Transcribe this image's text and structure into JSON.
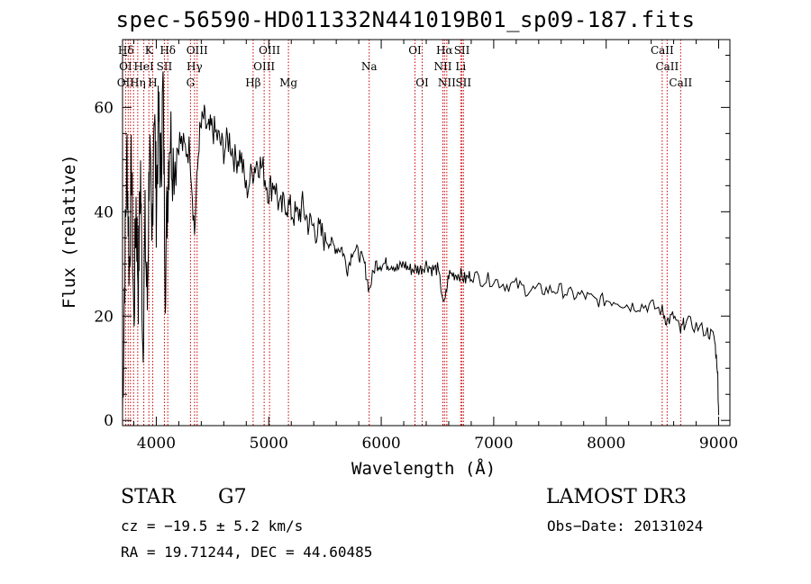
{
  "chart_data": {
    "type": "line",
    "title": "spec-56590-HD011332N441019B01_sp09-187.fits",
    "xlabel": "Wavelength (Å)",
    "ylabel": "Flux (relative)",
    "xlim": [
      3700,
      9100
    ],
    "ylim": [
      -1,
      73
    ],
    "xticks": [
      4000,
      5000,
      6000,
      7000,
      8000,
      9000
    ],
    "xtick_labels": [
      "4000",
      "5000",
      "6000",
      "7000",
      "8000",
      "9000"
    ],
    "yticks": [
      0,
      20,
      40,
      60
    ],
    "ytick_labels": [
      "0",
      "20",
      "40",
      "60"
    ],
    "spectrum": {
      "x": [
        3700,
        3720,
        3740,
        3760,
        3780,
        3800,
        3820,
        3840,
        3860,
        3880,
        3900,
        3920,
        3940,
        3960,
        3980,
        4000,
        4020,
        4040,
        4060,
        4080,
        4100,
        4120,
        4150,
        4200,
        4250,
        4300,
        4340,
        4380,
        4420,
        4460,
        4500,
        4550,
        4600,
        4650,
        4700,
        4750,
        4800,
        4860,
        4900,
        4950,
        5000,
        5050,
        5100,
        5150,
        5200,
        5250,
        5300,
        5350,
        5400,
        5450,
        5500,
        5550,
        5600,
        5650,
        5700,
        5750,
        5800,
        5850,
        5893,
        5950,
        6000,
        6050,
        6100,
        6150,
        6200,
        6250,
        6300,
        6350,
        6400,
        6450,
        6500,
        6563,
        6600,
        6650,
        6700,
        6750,
        6800,
        6900,
        7000,
        7100,
        7200,
        7300,
        7400,
        7500,
        7600,
        7700,
        7800,
        7900,
        8000,
        8100,
        8200,
        8300,
        8400,
        8498,
        8542,
        8600,
        8662,
        8700,
        8800,
        8900,
        8960,
        8990,
        9000
      ],
      "y": [
        2,
        30,
        52,
        28,
        50,
        18,
        42,
        26,
        48,
        15,
        36,
        22,
        54,
        30,
        62,
        42,
        58,
        48,
        64,
        28,
        44,
        56,
        50,
        54,
        52,
        52,
        36,
        54,
        58,
        55,
        56,
        54,
        52,
        54,
        50,
        51,
        44,
        48,
        50,
        48,
        44,
        46,
        40,
        42,
        40,
        39,
        41,
        38,
        37,
        36,
        35,
        34,
        33,
        33,
        29,
        33,
        32,
        30,
        25,
        30,
        30,
        30,
        30,
        29,
        30,
        29,
        29,
        29,
        30,
        29,
        29,
        22,
        28,
        28,
        28,
        27,
        28,
        27,
        27,
        26,
        26,
        25,
        25,
        25,
        25,
        24,
        24,
        23,
        23,
        23,
        22,
        22,
        22,
        21,
        19,
        20,
        17,
        19,
        18,
        17,
        16,
        10,
        1
      ]
    },
    "lines_row1": [
      {
        "label": "Hδ",
        "x": 3730
      },
      {
        "label": "K",
        "x": 3934
      },
      {
        "label": "Hδ",
        "x": 4102
      },
      {
        "label": "OIII",
        "x": 4363
      },
      {
        "label": "OIII",
        "x": 5007
      },
      {
        "label": "OI",
        "x": 6300
      },
      {
        "label": "Hα",
        "x": 6563
      },
      {
        "label": "SII",
        "x": 6717
      },
      {
        "label": "CaII",
        "x": 8498
      }
    ],
    "lines_row2": [
      {
        "label": "OI",
        "x": 3727
      },
      {
        "label": "HeI",
        "x": 3889
      },
      {
        "label": "SII",
        "x": 4072
      },
      {
        "label": "Hγ",
        "x": 4340
      },
      {
        "label": "OIII",
        "x": 4959
      },
      {
        "label": "Na",
        "x": 5893
      },
      {
        "label": "NII",
        "x": 6548
      },
      {
        "label": "Li",
        "x": 6707
      },
      {
        "label": "CaII",
        "x": 8542
      }
    ],
    "lines_row3": [
      {
        "label": "OII",
        "x": 3727
      },
      {
        "label": "Hη",
        "x": 3835
      },
      {
        "label": "H",
        "x": 3968
      },
      {
        "label": "G",
        "x": 4304
      },
      {
        "label": "Hβ",
        "x": 4861
      },
      {
        "label": "Mg",
        "x": 5175
      },
      {
        "label": "OI",
        "x": 6364
      },
      {
        "label": "NII",
        "x": 6583
      },
      {
        "label": "SII",
        "x": 6731
      },
      {
        "label": "CaII",
        "x": 8662
      }
    ],
    "line_markers_x": [
      3727,
      3750,
      3770,
      3798,
      3835,
      3889,
      3934,
      3968,
      4072,
      4102,
      4304,
      4340,
      4363,
      4861,
      4959,
      5007,
      5175,
      5893,
      6300,
      6364,
      6548,
      6563,
      6583,
      6707,
      6717,
      6731,
      8498,
      8542,
      8662
    ]
  },
  "info": {
    "class_label": "STAR",
    "subclass": "G7",
    "survey": "LAMOST DR3",
    "redshift": "cz = −19.5 ± 5.2 km/s",
    "obs_date": "Obs−Date: 20131024",
    "coords": "RA =  19.71244, DEC =  44.60485"
  },
  "colors": {
    "spectrum": "#000000",
    "lines": "#cc0000",
    "axes": "#000000"
  }
}
